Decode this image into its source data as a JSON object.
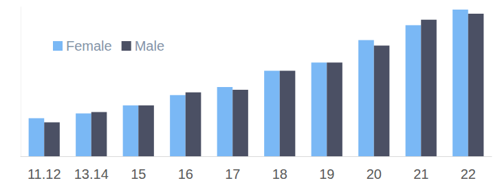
{
  "chart_data": {
    "type": "bar",
    "categories": [
      "11.12",
      "13.14",
      "15",
      "16",
      "17",
      "18",
      "19",
      "20",
      "21",
      "22"
    ],
    "series": [
      {
        "name": "Female",
        "color": "#7ab8f5",
        "values": [
          56,
          63,
          75,
          90,
          102,
          126,
          138,
          171,
          193,
          216
        ]
      },
      {
        "name": "Male",
        "color": "#4b5064",
        "values": [
          50,
          65,
          75,
          94,
          98,
          126,
          138,
          163,
          201,
          210
        ]
      }
    ],
    "ylim": [
      0,
      220
    ],
    "grid": false,
    "legend": "upper left",
    "tick_labels": "x"
  }
}
